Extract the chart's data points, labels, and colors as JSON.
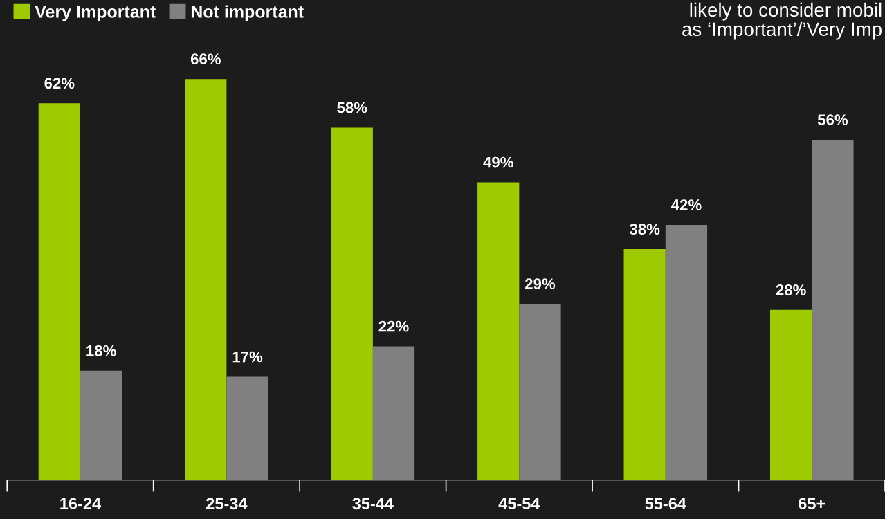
{
  "chart_data": {
    "type": "bar",
    "categories": [
      "16-24",
      "25-34",
      "35-44",
      "45-54",
      "55-64",
      "65+"
    ],
    "series": [
      {
        "name": "Very Important",
        "color": "#9dcb00",
        "values": [
          62,
          66,
          58,
          49,
          38,
          28
        ],
        "value_labels": [
          "62%",
          "66%",
          "58%",
          "49%",
          "38%",
          "28%"
        ]
      },
      {
        "name": "Not important",
        "color": "#808080",
        "values": [
          18,
          17,
          22,
          29,
          42,
          56
        ],
        "value_labels": [
          "18%",
          "17%",
          "22%",
          "29%",
          "42%",
          "56%"
        ]
      }
    ],
    "ylim": [
      0,
      79
    ],
    "tick_labels": "x",
    "grid": false,
    "legend": "top left",
    "annotations": [
      "likely to consider mobil\nas ‘Important’/’Very Imp"
    ]
  }
}
